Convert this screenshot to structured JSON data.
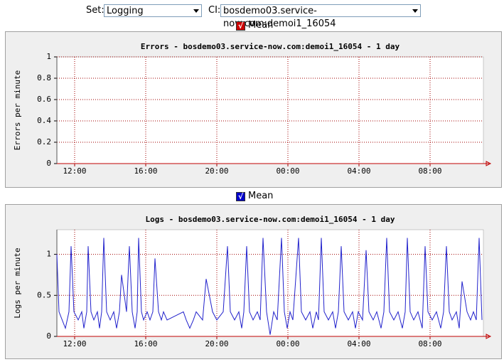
{
  "controls": {
    "set_label": "Set:",
    "set_value": "Logging",
    "ci_label": "CI:",
    "ci_value": "bosdemo03.service-now.com:demoi1_16054"
  },
  "chart_data": [
    {
      "type": "line",
      "mean_label": "Mean",
      "mean_checked": true,
      "mean_color": "#cc0000",
      "title": "Errors - bosdemo03.service-now.com:demoi1_16054 - 1 day",
      "y_label": "Errors per minute",
      "xlim": [
        11,
        35
      ],
      "xticks": [
        {
          "value": 12,
          "label": "12:00"
        },
        {
          "value": 16,
          "label": "16:00"
        },
        {
          "value": 20,
          "label": "20:00"
        },
        {
          "value": 24,
          "label": "00:00"
        },
        {
          "value": 28,
          "label": "04:00"
        },
        {
          "value": 32,
          "label": "08:00"
        }
      ],
      "ylim": [
        0,
        1
      ],
      "yticks": [
        0,
        0.2,
        0.4,
        0.6,
        0.8,
        1
      ],
      "grid": true,
      "series": []
    },
    {
      "type": "line",
      "mean_label": "Mean",
      "mean_checked": true,
      "mean_color": "#0000cc",
      "title": "Logs - bosdemo03.service-now.com:demoi1_16054 - 1 day",
      "y_label": "Logs per minute",
      "xlim": [
        11,
        35
      ],
      "xticks": [
        {
          "value": 12,
          "label": "12:00"
        },
        {
          "value": 16,
          "label": "16:00"
        },
        {
          "value": 20,
          "label": "20:00"
        },
        {
          "value": 24,
          "label": "00:00"
        },
        {
          "value": 28,
          "label": "04:00"
        },
        {
          "value": 32,
          "label": "08:00"
        }
      ],
      "ylim": [
        0,
        1.3
      ],
      "yticks": [
        0,
        0.5,
        1
      ],
      "grid": true,
      "series": [
        {
          "color": "#2222cc",
          "x": [
            11.0,
            11.12,
            11.48,
            11.68,
            11.8,
            11.96,
            12.2,
            12.4,
            12.52,
            12.68,
            12.76,
            12.92,
            13.08,
            13.28,
            13.4,
            13.52,
            13.64,
            13.8,
            14.0,
            14.2,
            14.36,
            14.52,
            14.64,
            14.92,
            15.08,
            15.24,
            15.4,
            15.52,
            15.6,
            15.76,
            15.88,
            16.08,
            16.24,
            16.4,
            16.52,
            16.72,
            16.88,
            17.0,
            17.2,
            18.12,
            18.28,
            18.48,
            18.68,
            18.84,
            19.2,
            19.4,
            19.76,
            20.0,
            20.36,
            20.6,
            20.76,
            21.0,
            21.24,
            21.4,
            21.52,
            21.68,
            21.84,
            22.04,
            22.28,
            22.44,
            22.6,
            22.8,
            23.0,
            23.2,
            23.4,
            23.64,
            23.8,
            23.96,
            24.12,
            24.28,
            24.6,
            24.76,
            25.0,
            25.24,
            25.4,
            25.6,
            25.72,
            25.88,
            26.04,
            26.28,
            26.52,
            26.68,
            26.84,
            27.0,
            27.16,
            27.4,
            27.64,
            27.8,
            27.96,
            28.2,
            28.4,
            28.56,
            28.8,
            29.0,
            29.24,
            29.4,
            29.56,
            29.72,
            29.96,
            30.2,
            30.44,
            30.6,
            30.72,
            30.88,
            31.08,
            31.32,
            31.56,
            31.72,
            31.88,
            32.12,
            32.36,
            32.6,
            32.76,
            32.92,
            33.08,
            33.24,
            33.48,
            33.64,
            33.8,
            34.08,
            34.28,
            34.44,
            34.6,
            34.76,
            34.92
          ],
          "values": [
            1.0,
            0.3,
            0.1,
            0.3,
            1.1,
            0.3,
            0.2,
            0.3,
            0.1,
            0.3,
            1.1,
            0.3,
            0.2,
            0.3,
            0.1,
            0.3,
            1.2,
            0.3,
            0.2,
            0.3,
            0.1,
            0.3,
            0.75,
            0.3,
            1.1,
            0.3,
            0.1,
            0.3,
            1.2,
            0.3,
            0.2,
            0.3,
            0.2,
            0.3,
            0.95,
            0.3,
            0.2,
            0.3,
            0.2,
            0.3,
            0.2,
            0.1,
            0.2,
            0.3,
            0.2,
            0.7,
            0.3,
            0.2,
            0.3,
            1.1,
            0.3,
            0.2,
            0.3,
            0.1,
            0.3,
            1.1,
            0.3,
            0.2,
            0.3,
            0.2,
            1.2,
            0.3,
            0.02,
            0.3,
            0.2,
            1.2,
            0.3,
            0.1,
            0.3,
            0.2,
            1.2,
            0.3,
            0.2,
            0.3,
            0.1,
            0.3,
            0.2,
            1.2,
            0.3,
            0.2,
            0.3,
            0.1,
            0.3,
            1.1,
            0.3,
            0.2,
            0.3,
            0.1,
            0.3,
            0.2,
            1.05,
            0.3,
            0.2,
            0.3,
            0.1,
            0.3,
            1.2,
            0.3,
            0.2,
            0.3,
            0.1,
            0.3,
            1.2,
            0.3,
            0.2,
            0.3,
            0.1,
            1.1,
            0.3,
            0.2,
            0.3,
            0.1,
            0.3,
            1.1,
            0.3,
            0.2,
            0.3,
            0.1,
            0.67,
            0.3,
            0.2,
            0.3,
            0.2,
            1.2,
            0.2
          ]
        }
      ]
    }
  ]
}
